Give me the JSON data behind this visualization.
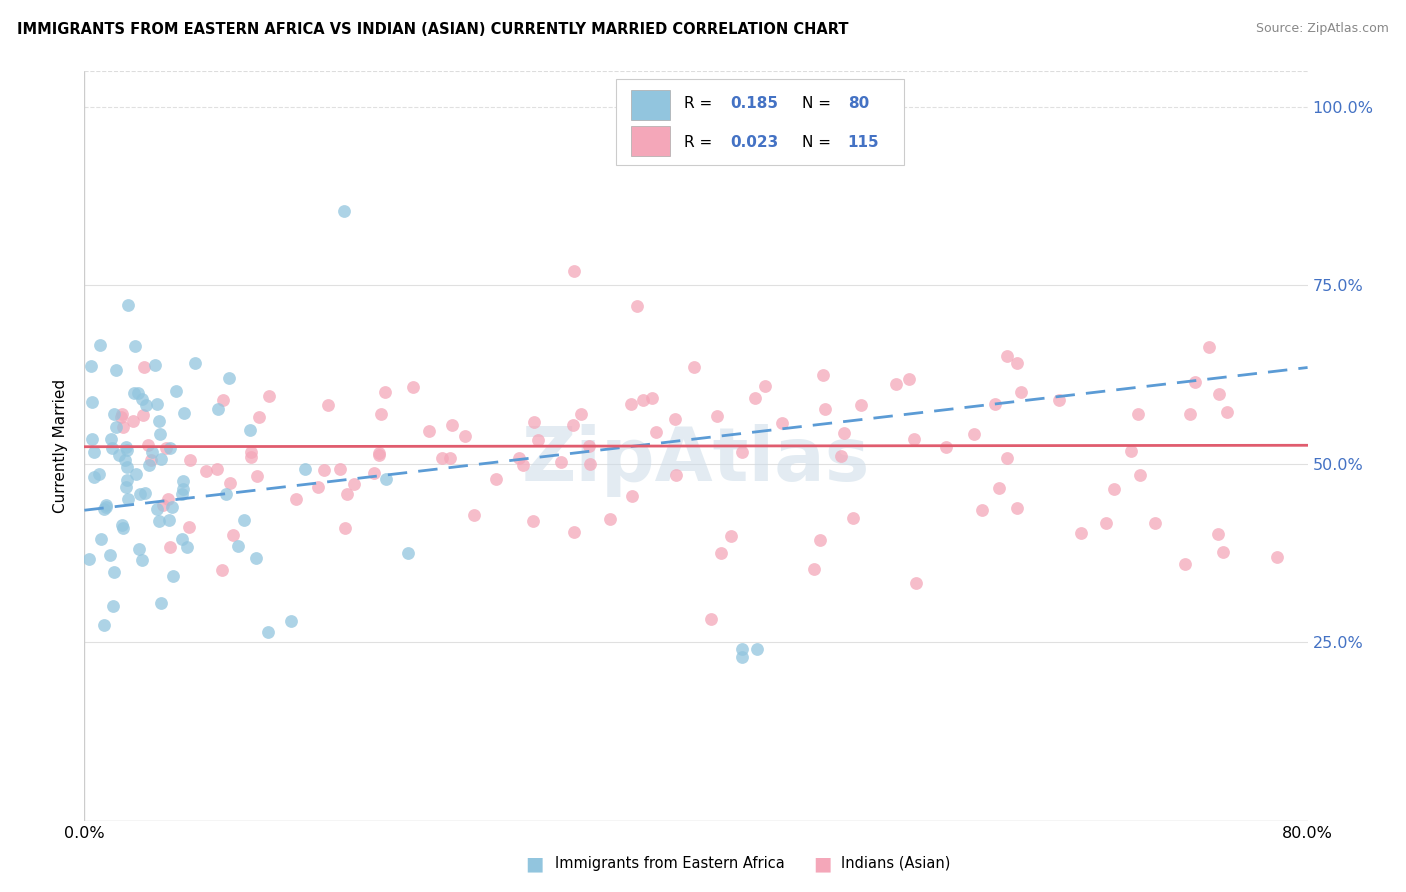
{
  "title": "IMMIGRANTS FROM EASTERN AFRICA VS INDIAN (ASIAN) CURRENTLY MARRIED CORRELATION CHART",
  "source": "Source: ZipAtlas.com",
  "ylabel": "Currently Married",
  "xlim": [
    0.0,
    0.8
  ],
  "ylim": [
    0.0,
    1.05
  ],
  "blue_R": 0.185,
  "blue_N": 80,
  "pink_R": 0.023,
  "pink_N": 115,
  "blue_color": "#92C5DE",
  "pink_color": "#F4A7B9",
  "trendline_blue_color": "#5B9BD5",
  "trendline_pink_color": "#E05C6E",
  "watermark_color": "#C8D8E8",
  "background_color": "#FFFFFF",
  "grid_color": "#E0E0E0",
  "right_axis_color": "#4472C4",
  "legend_R_color": "#000000",
  "legend_val_color": "#4472C4",
  "title_fontsize": 11,
  "source_fontsize": 9,
  "blue_trendline_start_x": 0.0,
  "blue_trendline_end_x": 0.8,
  "blue_trendline_start_y": 0.435,
  "blue_trendline_end_y": 0.635,
  "pink_trendline_start_x": 0.0,
  "pink_trendline_end_x": 0.8,
  "pink_trendline_start_y": 0.524,
  "pink_trendline_end_y": 0.526
}
